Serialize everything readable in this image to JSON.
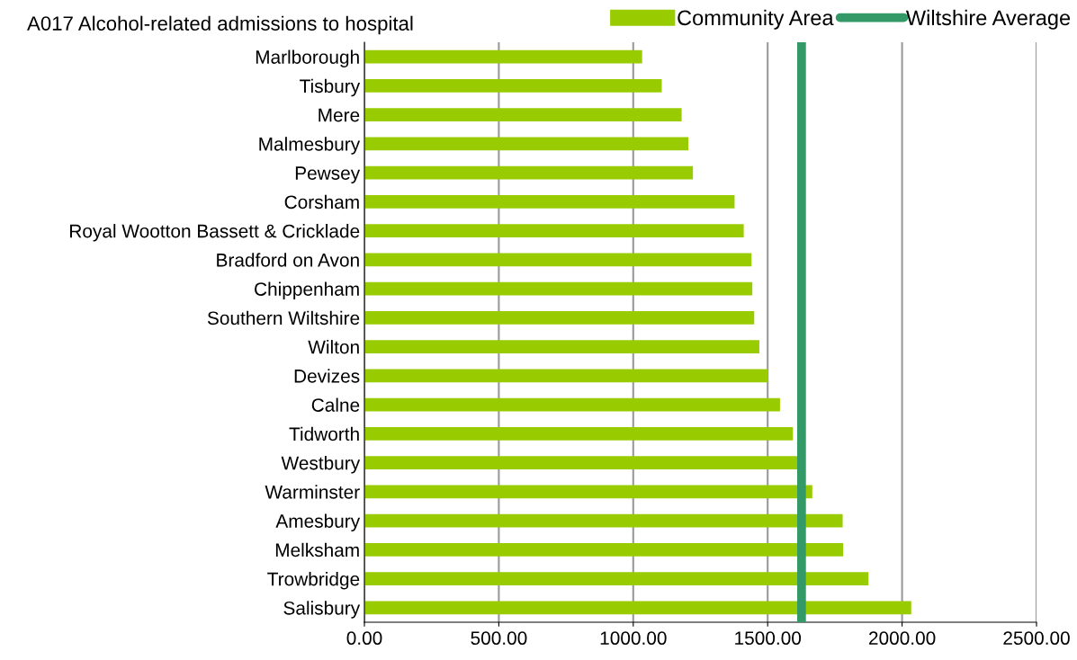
{
  "chart_data": {
    "type": "bar",
    "orientation": "horizontal",
    "title": "A017 Alcohol-related admissions to hospital",
    "categories": [
      "Marlborough",
      "Tisbury",
      "Mere",
      "Malmesbury",
      "Pewsey",
      "Corsham",
      "Royal Wootton Bassett & Cricklade",
      "Bradford on Avon",
      "Chippenham",
      "Southern Wiltshire",
      "Wilton",
      "Devizes",
      "Calne",
      "Tidworth",
      "Westbury",
      "Warminster",
      "Amesbury",
      "Melksham",
      "Trowbridge",
      "Salisbury"
    ],
    "series": [
      {
        "name": "Community Area",
        "color": "#99cc00",
        "values": [
          1033,
          1106,
          1180,
          1205,
          1222,
          1377,
          1411,
          1440,
          1443,
          1450,
          1469,
          1501,
          1546,
          1594,
          1610,
          1666,
          1779,
          1781,
          1875,
          2034
        ]
      }
    ],
    "ref_lines": [
      {
        "axis": "x",
        "value": 1626,
        "label": "Wiltshire Average",
        "color": "#339966"
      }
    ],
    "xlim": [
      0,
      2500
    ],
    "xticks": [
      {
        "value": 0,
        "label": "0.00"
      },
      {
        "value": 500,
        "label": "500.00"
      },
      {
        "value": 1000,
        "label": "1000.00"
      },
      {
        "value": 1500,
        "label": "1500.00"
      },
      {
        "value": 2000,
        "label": "2000.00"
      },
      {
        "value": 2500,
        "label": "2500.00"
      }
    ],
    "grid": "x",
    "legend": "top right"
  }
}
